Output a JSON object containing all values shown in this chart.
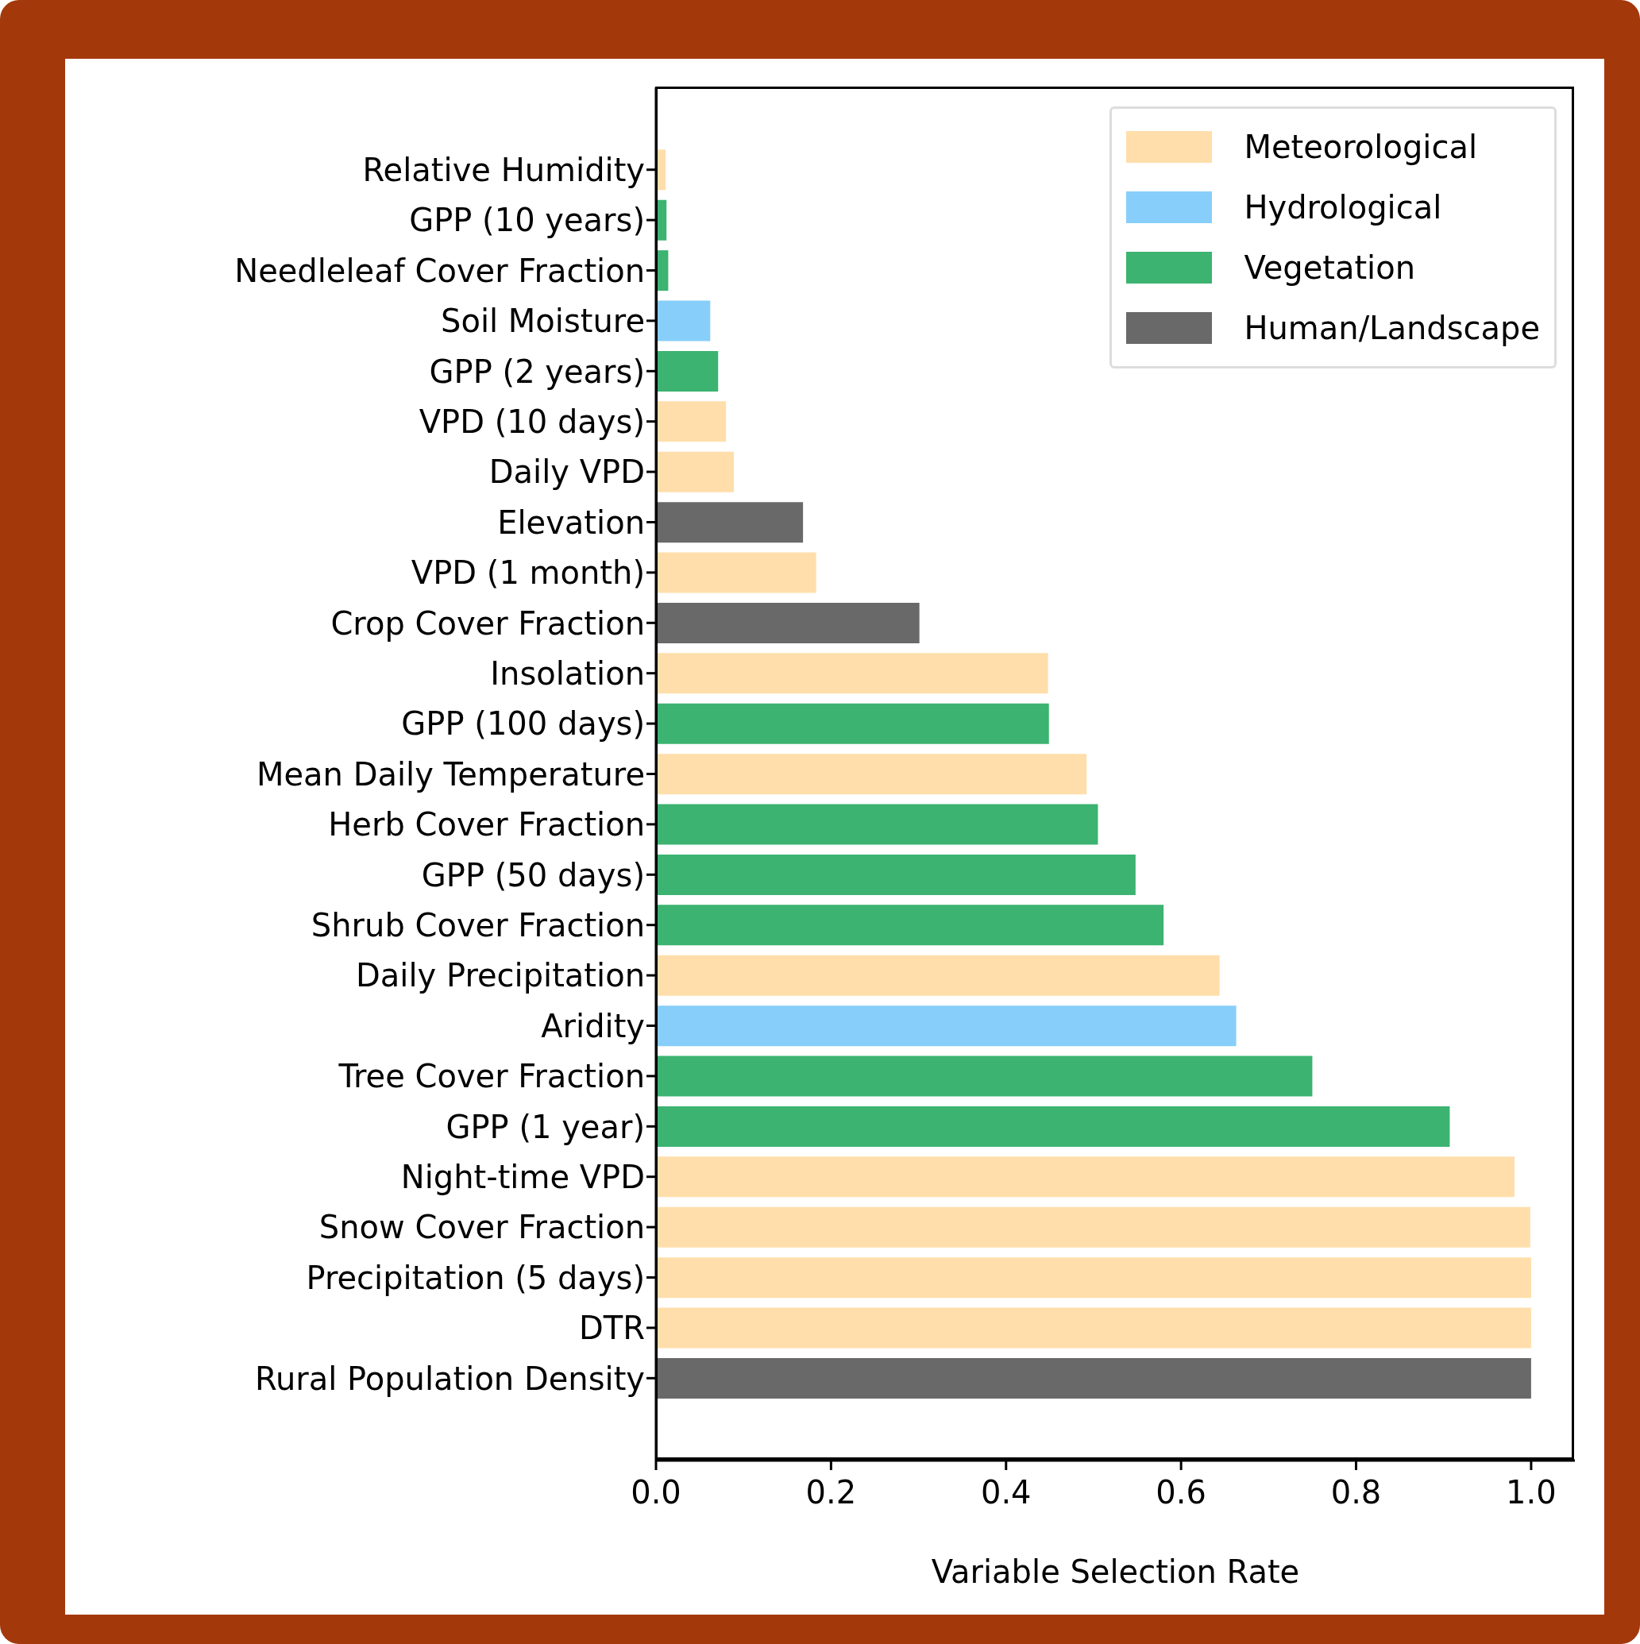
{
  "chart_data": {
    "type": "bar",
    "orientation": "horizontal",
    "stacked": true,
    "xlabel": "Variable Selection Rate",
    "categories": [
      "Relative Humidity",
      "GPP (10 years)",
      "Needleleaf Cover Fraction",
      "Soil Moisture",
      "GPP (2 years)",
      "VPD (10 days)",
      "Daily VPD",
      "Elevation",
      "VPD (1 month)",
      "Crop Cover Fraction",
      "Insolation",
      "GPP (100 days)",
      "Mean Daily Temperature",
      "Herb Cover Fraction",
      "GPP (50 days)",
      "Shrub Cover Fraction",
      "Daily Precipitation",
      "Aridity",
      "Tree Cover Fraction",
      "GPP (1 year)",
      "Night-time VPD",
      "Snow Cover Fraction",
      "Precipitation (5 days)",
      "DTR",
      "Rural Population Density"
    ],
    "series": [
      {
        "name": "Meteorological",
        "color": "#ffdeab",
        "values": [
          0.011,
          null,
          null,
          null,
          null,
          0.08,
          0.089,
          null,
          0.183,
          null,
          0.448,
          null,
          0.492,
          null,
          null,
          null,
          0.644,
          null,
          null,
          null,
          0.981,
          0.999,
          1.0,
          1.0,
          null
        ]
      },
      {
        "name": "Hydrological",
        "color": "#87cefa",
        "values": [
          null,
          null,
          null,
          0.062,
          null,
          null,
          null,
          null,
          null,
          null,
          null,
          null,
          null,
          null,
          null,
          null,
          null,
          0.663,
          null,
          null,
          null,
          null,
          null,
          null,
          null
        ]
      },
      {
        "name": "Vegetation",
        "color": "#3cb371",
        "values": [
          null,
          0.012,
          0.014,
          null,
          0.071,
          null,
          null,
          null,
          null,
          null,
          null,
          0.449,
          null,
          0.505,
          0.548,
          0.58,
          null,
          null,
          0.75,
          0.907,
          null,
          null,
          null,
          null,
          null
        ]
      },
      {
        "name": "Human/Landscape",
        "color": "#696969",
        "values": [
          null,
          null,
          null,
          null,
          null,
          null,
          null,
          0.168,
          null,
          0.301,
          null,
          null,
          null,
          null,
          null,
          null,
          null,
          null,
          null,
          null,
          null,
          null,
          null,
          null,
          1.0
        ]
      }
    ],
    "xlim": [
      0,
      1.05
    ],
    "xticks": [
      {
        "value": 0,
        "label": "0.0"
      },
      {
        "value": 0.2,
        "label": "0.2"
      },
      {
        "value": 0.4,
        "label": "0.4"
      },
      {
        "value": 0.6,
        "label": "0.6"
      },
      {
        "value": 0.8,
        "label": "0.8"
      },
      {
        "value": 1,
        "label": "1.0"
      }
    ],
    "legend": "top right",
    "grid": false
  }
}
